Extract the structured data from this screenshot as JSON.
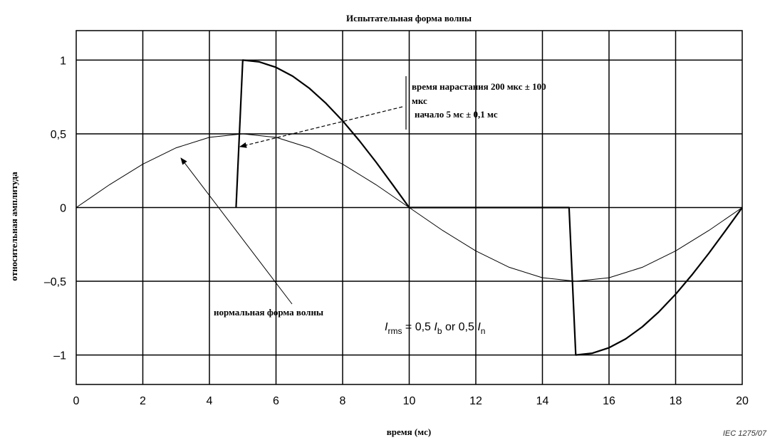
{
  "chart_data": {
    "type": "line",
    "title": "Испытательная форма волны",
    "xlabel": "время (мс)",
    "ylabel": "относительная амплитуда",
    "xlim": [
      0,
      20
    ],
    "ylim": [
      -1.2,
      1.2
    ],
    "x_ticks": [
      "0",
      "2",
      "4",
      "6",
      "8",
      "10",
      "12",
      "14",
      "16",
      "18",
      "20"
    ],
    "y_ticks": [
      {
        "value": 1,
        "label": "1"
      },
      {
        "value": 0.5,
        "label": "0,5"
      },
      {
        "value": 0,
        "label": "0"
      },
      {
        "value": -0.5,
        "label": "–0,5"
      },
      {
        "value": -1,
        "label": "–1"
      }
    ],
    "grid": true,
    "series": [
      {
        "kind": "normal",
        "style": "thin",
        "points": [
          [
            0,
            0
          ],
          [
            1,
            0.155
          ],
          [
            2,
            0.294
          ],
          [
            3,
            0.405
          ],
          [
            4,
            0.476
          ],
          [
            5,
            0.5
          ],
          [
            6,
            0.476
          ],
          [
            7,
            0.405
          ],
          [
            8,
            0.294
          ],
          [
            9,
            0.155
          ],
          [
            10,
            0
          ],
          [
            11,
            -0.155
          ],
          [
            12,
            -0.294
          ],
          [
            13,
            -0.405
          ],
          [
            14,
            -0.476
          ],
          [
            15,
            -0.5
          ],
          [
            16,
            -0.476
          ],
          [
            17,
            -0.405
          ],
          [
            18,
            -0.294
          ],
          [
            19,
            -0.155
          ],
          [
            20,
            0
          ]
        ]
      },
      {
        "kind": "test",
        "style": "thick",
        "points": [
          [
            4.8,
            0
          ],
          [
            5,
            1
          ],
          [
            5.5,
            0.988
          ],
          [
            6,
            0.951
          ],
          [
            6.5,
            0.891
          ],
          [
            7,
            0.809
          ],
          [
            7.5,
            0.707
          ],
          [
            8,
            0.588
          ],
          [
            8.5,
            0.454
          ],
          [
            9,
            0.309
          ],
          [
            9.5,
            0.156
          ],
          [
            10,
            0
          ],
          [
            14.8,
            0
          ],
          [
            15,
            -1
          ],
          [
            15.5,
            -0.988
          ],
          [
            16,
            -0.951
          ],
          [
            16.5,
            -0.891
          ],
          [
            17,
            -0.809
          ],
          [
            17.5,
            -0.707
          ],
          [
            18,
            -0.588
          ],
          [
            18.5,
            -0.454
          ],
          [
            19,
            -0.309
          ],
          [
            19.5,
            -0.156
          ],
          [
            20,
            0
          ]
        ]
      }
    ],
    "annotations": {
      "rise_line1": "время нарастания 200 мкс ± 100",
      "rise_line2": "мкс",
      "onset": "начало 5 мс ± 0,1 мс",
      "normal_label": "нормальная форма волны",
      "formula": {
        "I1": "I",
        "sub1": "rms",
        "mid1": " = 0,5 ",
        "I2": "I",
        "sub2": "b",
        "mid2": " or 0,5 ",
        "I3": "I",
        "sub3": "n"
      }
    },
    "credit": "IEC 1275/07"
  }
}
